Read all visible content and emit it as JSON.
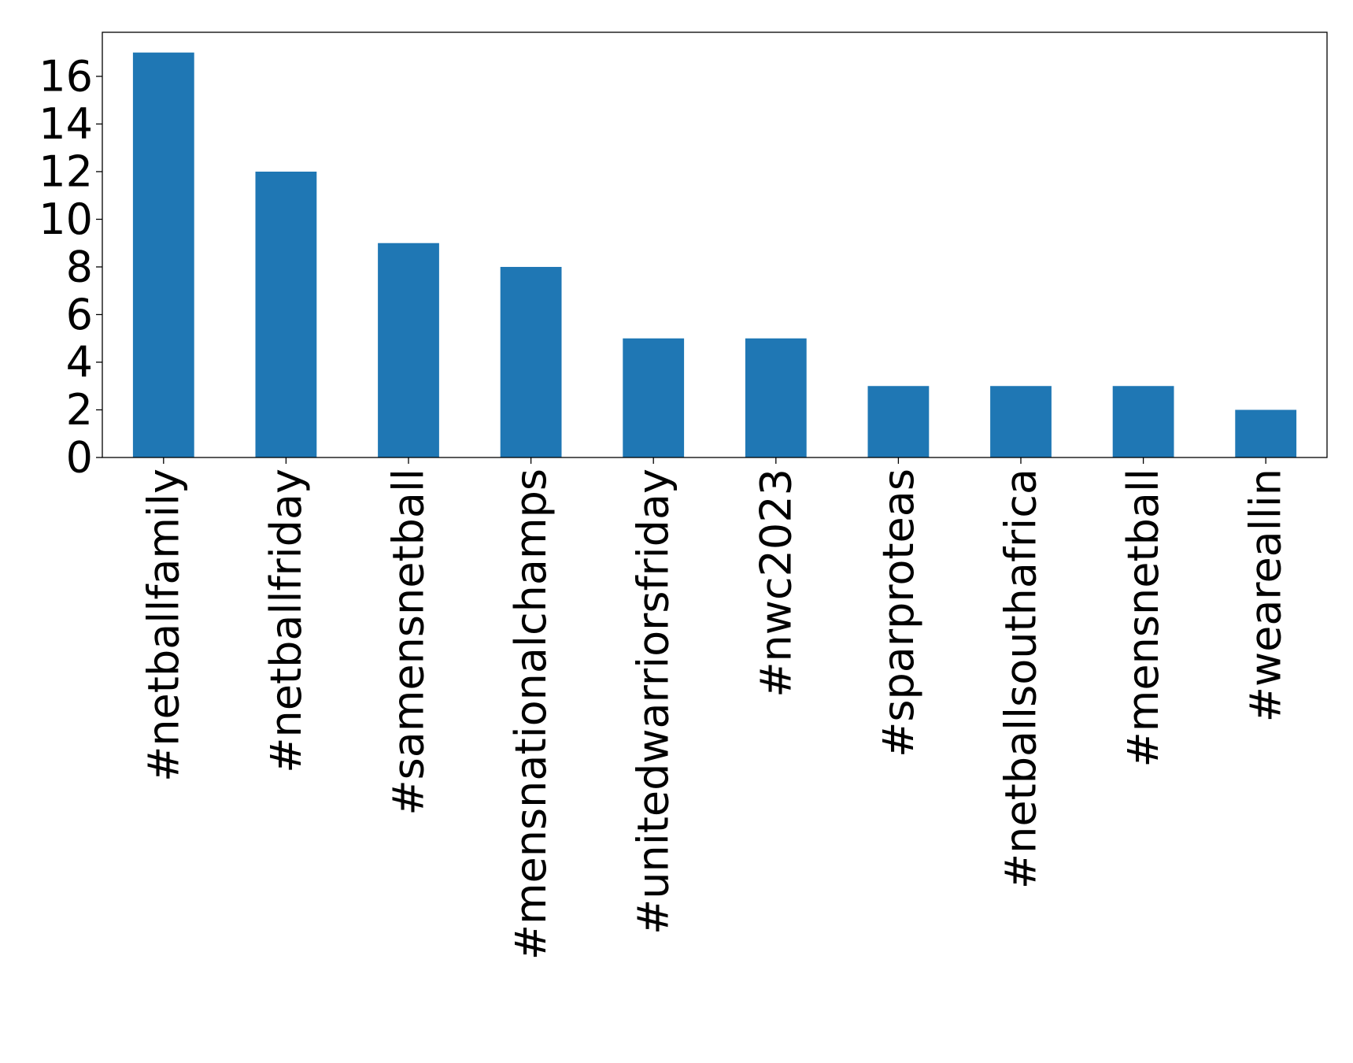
{
  "chart_data": {
    "type": "bar",
    "title": "",
    "xlabel": "",
    "ylabel": "",
    "categories": [
      "#netballfamily",
      "#netballfriday",
      "#samensnetball",
      "#mensnationalchamps",
      "#unitedwarriorsfriday",
      "#nwc2023",
      "#sparproteas",
      "#netballsouthafrica",
      "#mensnetball",
      "#weareallin"
    ],
    "values": [
      17,
      12,
      9,
      8,
      5,
      5,
      3,
      3,
      3,
      2
    ],
    "ylim": [
      0,
      17.85
    ],
    "yticks": [
      "0",
      "2",
      "4",
      "6",
      "8",
      "10",
      "12",
      "14",
      "16"
    ],
    "grid": false,
    "legend": "none",
    "bar_color": "#1f77b4"
  }
}
